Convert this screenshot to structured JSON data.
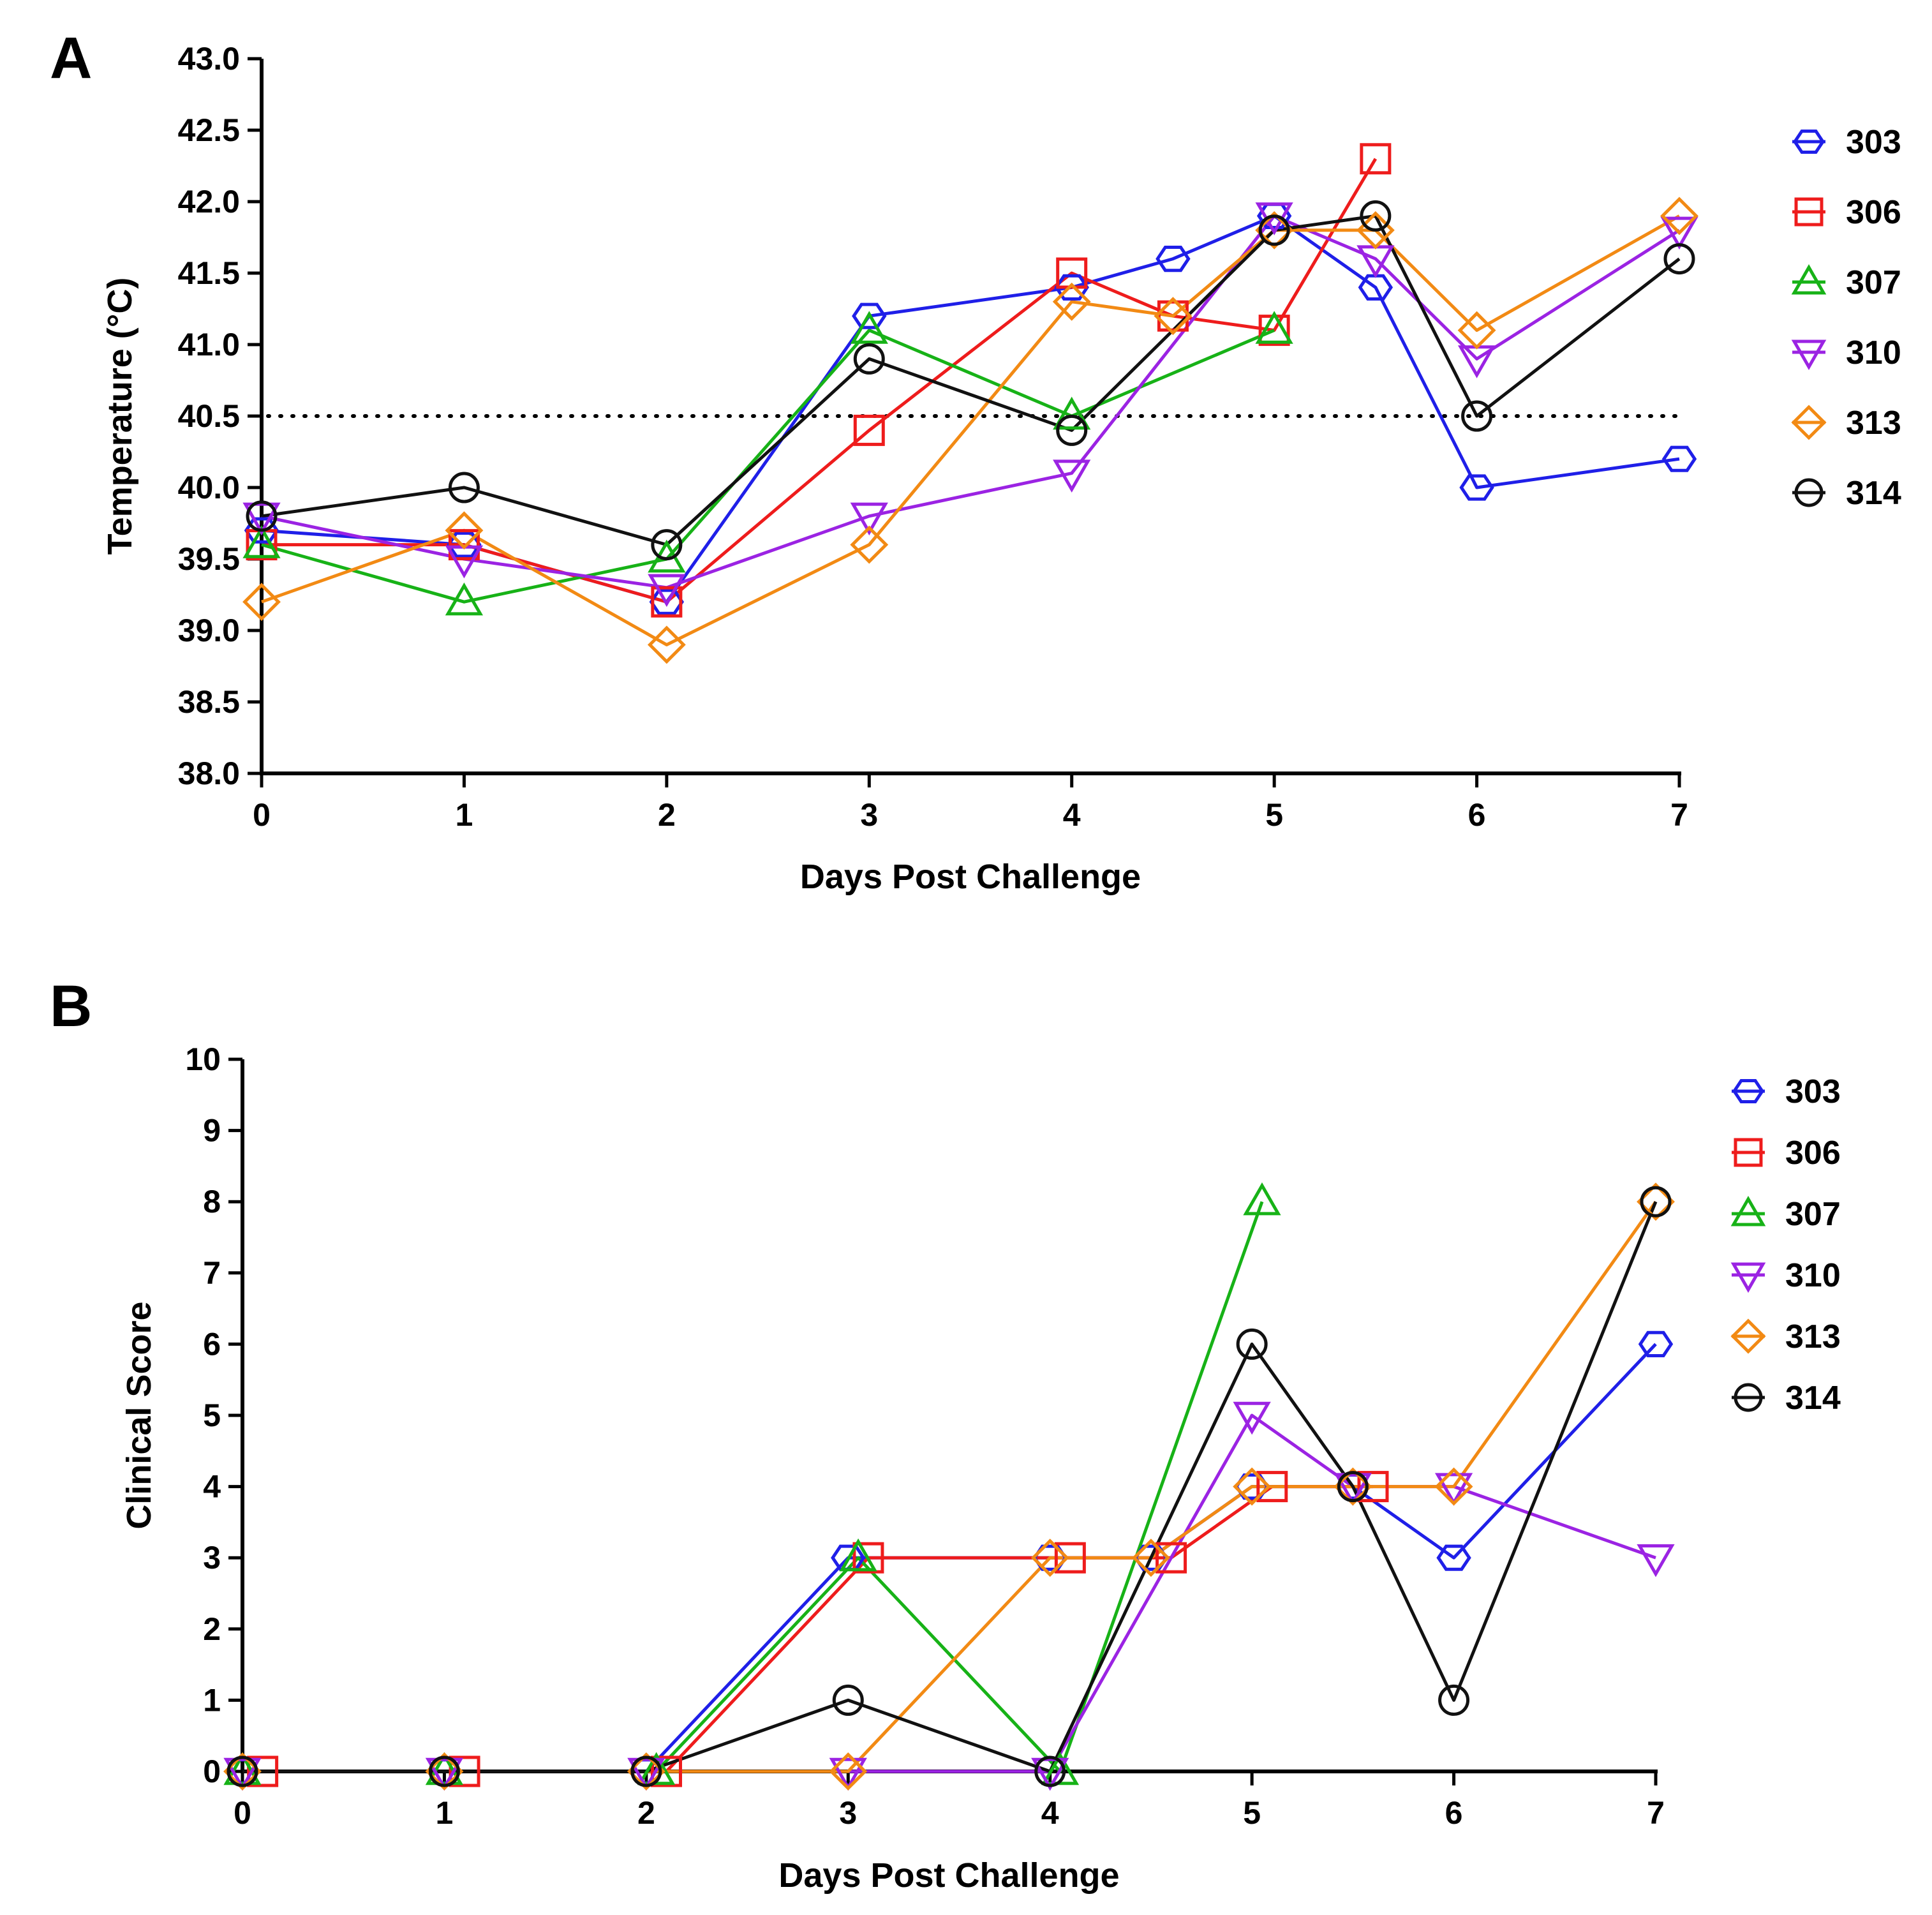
{
  "colors": {
    "303": "#1f1fe8",
    "306": "#ee1c1c",
    "307": "#17b217",
    "310": "#9b23e3",
    "313": "#f28a14",
    "314": "#111111"
  },
  "markers": {
    "303": "hexagon",
    "306": "square",
    "307": "triangle-up",
    "310": "triangle-down",
    "313": "diamond",
    "314": "circle"
  },
  "chart_data": [
    {
      "panel": "A",
      "type": "line",
      "xlabel": "Days Post Challenge",
      "ylabel": "Temperature (°C)",
      "xlim": [
        0,
        7
      ],
      "ylim": [
        38.0,
        43.0
      ],
      "xticks": [
        "0",
        "1",
        "2",
        "3",
        "4",
        "5",
        "6",
        "7"
      ],
      "yticks": [
        "38.0",
        "38.5",
        "39.0",
        "39.5",
        "40.0",
        "40.5",
        "41.0",
        "41.5",
        "42.0",
        "42.5",
        "43.0"
      ],
      "reference_line": {
        "y": 40.5,
        "style": "dotted"
      },
      "legend": [
        "303",
        "306",
        "307",
        "310",
        "313",
        "314"
      ],
      "series": [
        {
          "name": "303",
          "x": [
            0,
            1,
            2,
            3,
            4,
            4.5,
            5,
            5.5,
            6,
            7
          ],
          "y": [
            39.7,
            39.6,
            39.2,
            41.2,
            41.4,
            41.6,
            41.9,
            41.4,
            40.0,
            40.2
          ]
        },
        {
          "name": "306",
          "x": [
            0,
            1,
            2,
            3,
            4,
            4.5,
            5,
            5.5
          ],
          "y": [
            39.6,
            39.6,
            39.2,
            40.4,
            41.5,
            41.2,
            41.1,
            42.3
          ]
        },
        {
          "name": "307",
          "x": [
            0,
            1,
            2,
            3,
            4,
            5
          ],
          "y": [
            39.6,
            39.2,
            39.5,
            41.1,
            40.5,
            41.1
          ]
        },
        {
          "name": "310",
          "x": [
            0,
            1,
            2,
            3,
            4,
            5,
            5.5,
            6,
            7
          ],
          "y": [
            39.8,
            39.5,
            39.3,
            39.8,
            40.1,
            41.9,
            41.6,
            40.9,
            41.8
          ]
        },
        {
          "name": "313",
          "x": [
            0,
            1,
            2,
            3,
            4,
            4.5,
            5,
            5.5,
            6,
            7
          ],
          "y": [
            39.2,
            39.7,
            38.9,
            39.6,
            41.3,
            41.2,
            41.8,
            41.8,
            41.1,
            41.9
          ]
        },
        {
          "name": "314",
          "x": [
            0,
            1,
            2,
            3,
            4,
            5,
            5.5,
            6,
            7
          ],
          "y": [
            39.8,
            40.0,
            39.6,
            40.9,
            40.4,
            41.8,
            41.9,
            40.5,
            41.6
          ]
        }
      ]
    },
    {
      "panel": "B",
      "type": "line",
      "xlabel": "Days Post Challenge",
      "ylabel": "Clinical Score",
      "xlim": [
        0,
        7
      ],
      "ylim": [
        0,
        10
      ],
      "xticks": [
        "0",
        "1",
        "2",
        "3",
        "4",
        "5",
        "6",
        "7"
      ],
      "yticks": [
        "0",
        "1",
        "2",
        "3",
        "4",
        "5",
        "6",
        "7",
        "8",
        "9",
        "10"
      ],
      "legend": [
        "303",
        "306",
        "307",
        "310",
        "313",
        "314"
      ],
      "series": [
        {
          "name": "303",
          "x": [
            0,
            1,
            2,
            3,
            4,
            4.5,
            5,
            5.5,
            6,
            7
          ],
          "y": [
            0,
            0,
            0,
            3,
            3,
            3,
            4,
            4,
            3,
            6
          ]
        },
        {
          "name": "306",
          "x": [
            0.1,
            1.1,
            2.1,
            3.1,
            4.1,
            4.6,
            5.1,
            5.6
          ],
          "y": [
            0,
            0,
            0,
            3,
            3,
            3,
            4,
            4
          ]
        },
        {
          "name": "307",
          "x": [
            0,
            1,
            2.05,
            3.05,
            4.05,
            5.05
          ],
          "y": [
            0,
            0,
            0,
            3,
            0,
            8
          ]
        },
        {
          "name": "310",
          "x": [
            0,
            1,
            2,
            3,
            4,
            5,
            5.5,
            6,
            7
          ],
          "y": [
            0,
            0,
            0,
            0,
            0,
            5,
            4,
            4,
            3
          ]
        },
        {
          "name": "313",
          "x": [
            0,
            1,
            2,
            3,
            4,
            4.5,
            5,
            5.5,
            6,
            7
          ],
          "y": [
            0,
            0,
            0,
            0,
            3,
            3,
            4,
            4,
            4,
            8
          ]
        },
        {
          "name": "314",
          "x": [
            0,
            1,
            2,
            3,
            4,
            5,
            5.5,
            6,
            7
          ],
          "y": [
            0,
            0,
            0,
            1,
            0,
            6,
            4,
            1,
            8
          ]
        }
      ]
    }
  ]
}
